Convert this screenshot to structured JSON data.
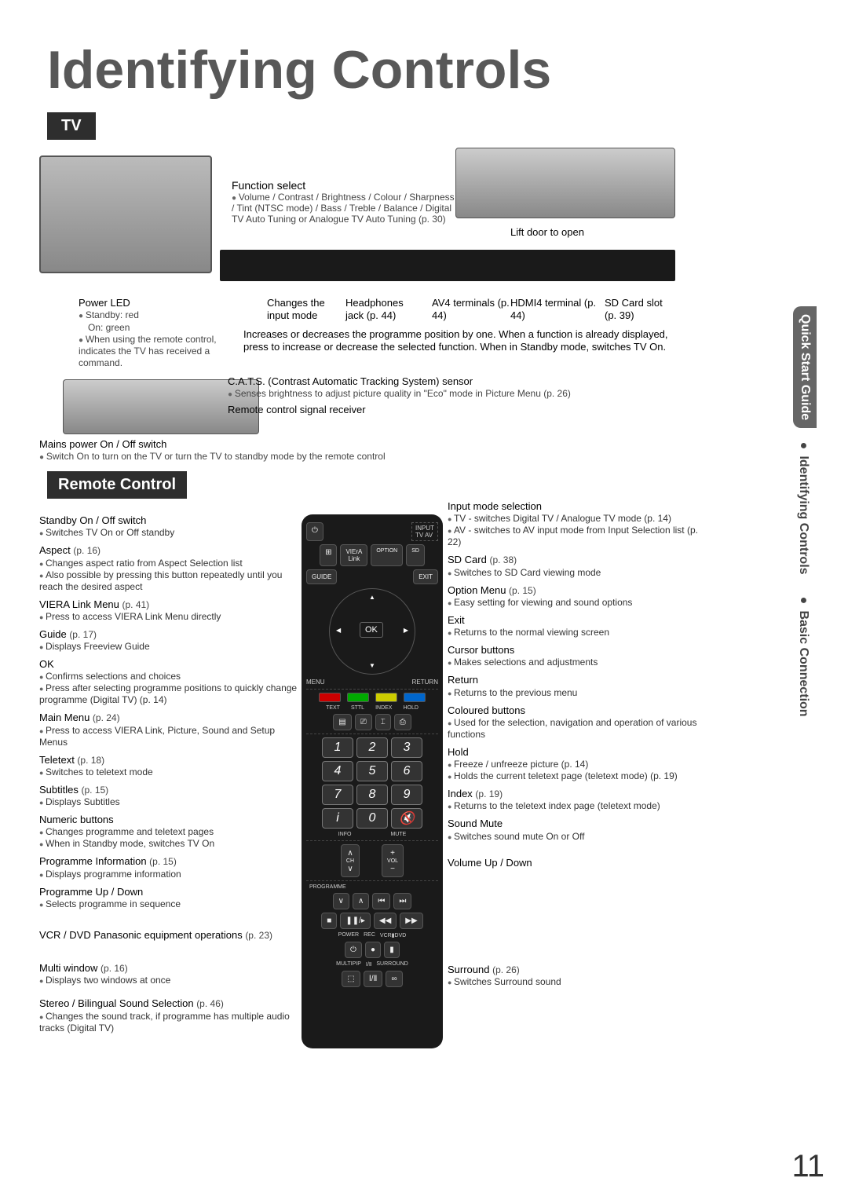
{
  "page": {
    "title": "Identifying Controls",
    "number": "11",
    "side_tab_top": "Quick Start Guide",
    "side_tab_bottom1": "● Identifying Controls",
    "side_tab_bottom2": "● Basic Connection"
  },
  "tv": {
    "header": "TV",
    "function_select": {
      "title": "Function select",
      "desc": "Volume / Contrast / Brightness / Colour / Sharpness / Tint (NTSC mode) / Bass / Treble / Balance / Digital TV Auto Tuning or Analogue TV Auto Tuning (p. 30)"
    },
    "lift": "Lift door to open",
    "power_led": {
      "title": "Power LED",
      "l1": "Standby: red",
      "l2": "On: green",
      "l3": "When using the remote control, indicates the TV has received a command."
    },
    "strip_labels": {
      "changes": "Changes the input mode",
      "headphones": "Headphones jack (p. 44)",
      "av4": "AV4 terminals (p. 44)",
      "hdmi": "HDMI4 terminal (p. 44)",
      "sd": "SD Card slot (p. 39)"
    },
    "increases": "Increases or decreases the programme position by one. When a function is already displayed, press to increase or decrease the selected function. When in Standby mode, switches TV On.",
    "cats": "C.A.T.S. (Contrast Automatic Tracking System) sensor",
    "cats_sub": "Senses brightness to adjust picture quality in \"Eco\" mode in Picture Menu (p. 26)",
    "signal": "Remote control signal receiver",
    "mains": "Mains power On / Off switch",
    "mains_sub": "Switch On to turn on the TV or turn the TV to standby mode by the remote control"
  },
  "remote": {
    "header": "Remote Control",
    "left": [
      {
        "label": "Standby On / Off switch",
        "pg": "",
        "subs": [
          "Switches TV On or Off standby"
        ]
      },
      {
        "label": "Aspect",
        "pg": "(p. 16)",
        "subs": [
          "Changes aspect ratio from Aspect Selection list",
          "Also possible by pressing this button repeatedly until you reach the desired aspect"
        ]
      },
      {
        "label": "VIERA Link Menu",
        "pg": "(p. 41)",
        "subs": [
          "Press to access VIERA Link Menu directly"
        ]
      },
      {
        "label": "Guide",
        "pg": "(p. 17)",
        "subs": [
          "Displays Freeview Guide"
        ]
      },
      {
        "label": "OK",
        "pg": "",
        "subs": [
          "Confirms selections and choices",
          "Press after selecting programme positions to quickly change programme (Digital TV) (p. 14)"
        ]
      },
      {
        "label": "Main Menu",
        "pg": "(p. 24)",
        "subs": [
          "Press to access VIERA Link, Picture, Sound and Setup Menus"
        ]
      },
      {
        "label": "Teletext",
        "pg": "(p. 18)",
        "subs": [
          "Switches to teletext mode"
        ]
      },
      {
        "label": "Subtitles",
        "pg": "(p. 15)",
        "subs": [
          "Displays Subtitles"
        ]
      },
      {
        "label": "Numeric buttons",
        "pg": "",
        "subs": [
          "Changes programme and teletext pages",
          "When in Standby mode, switches TV On"
        ]
      },
      {
        "label": "Programme Information",
        "pg": "(p. 15)",
        "subs": [
          "Displays programme information"
        ]
      },
      {
        "label": "Programme Up / Down",
        "pg": "",
        "subs": [
          "Selects programme in sequence"
        ]
      },
      {
        "label": "VCR / DVD Panasonic equipment operations",
        "pg": "(p. 23)",
        "subs": []
      },
      {
        "label": "Multi window",
        "pg": "(p. 16)",
        "subs": [
          "Displays two windows at once"
        ]
      },
      {
        "label": "Stereo / Bilingual Sound Selection",
        "pg": "(p. 46)",
        "subs": [
          "Changes the sound track, if programme has multiple audio tracks (Digital TV)"
        ]
      }
    ],
    "right": [
      {
        "label": "Input mode selection",
        "pg": "",
        "subs": [
          "TV - switches Digital TV / Analogue TV mode (p. 14)",
          "AV - switches to AV input mode from Input Selection list (p. 22)"
        ]
      },
      {
        "label": "SD Card",
        "pg": "(p. 38)",
        "subs": [
          "Switches to SD Card viewing mode"
        ]
      },
      {
        "label": "Option Menu",
        "pg": "(p. 15)",
        "subs": [
          "Easy setting for viewing and sound options"
        ]
      },
      {
        "label": "Exit",
        "pg": "",
        "subs": [
          "Returns to the normal viewing screen"
        ]
      },
      {
        "label": "Cursor buttons",
        "pg": "",
        "subs": [
          "Makes selections and adjustments"
        ]
      },
      {
        "label": "Return",
        "pg": "",
        "subs": [
          "Returns to the previous menu"
        ]
      },
      {
        "label": "Coloured buttons",
        "pg": "",
        "subs": [
          "Used for the selection, navigation and operation of various functions"
        ]
      },
      {
        "label": "Hold",
        "pg": "",
        "subs": [
          "Freeze / unfreeze picture (p. 14)",
          "Holds the current teletext page (teletext mode) (p. 19)"
        ]
      },
      {
        "label": "Index",
        "pg": "(p. 19)",
        "subs": [
          "Returns to the teletext index page (teletext mode)"
        ]
      },
      {
        "label": "Sound Mute",
        "pg": "",
        "subs": [
          "Switches sound mute On or Off"
        ]
      },
      {
        "label": "Volume Up / Down",
        "pg": "",
        "subs": []
      },
      {
        "label": "Surround",
        "pg": "(p. 26)",
        "subs": [
          "Switches Surround sound"
        ]
      }
    ],
    "colors": {
      "r": "#c00",
      "g": "#0a0",
      "y": "#cc0",
      "b": "#06c"
    },
    "nums": [
      "1",
      "2",
      "3",
      "4",
      "5",
      "6",
      "7",
      "8",
      "9",
      "i",
      "0",
      "🔇"
    ]
  }
}
